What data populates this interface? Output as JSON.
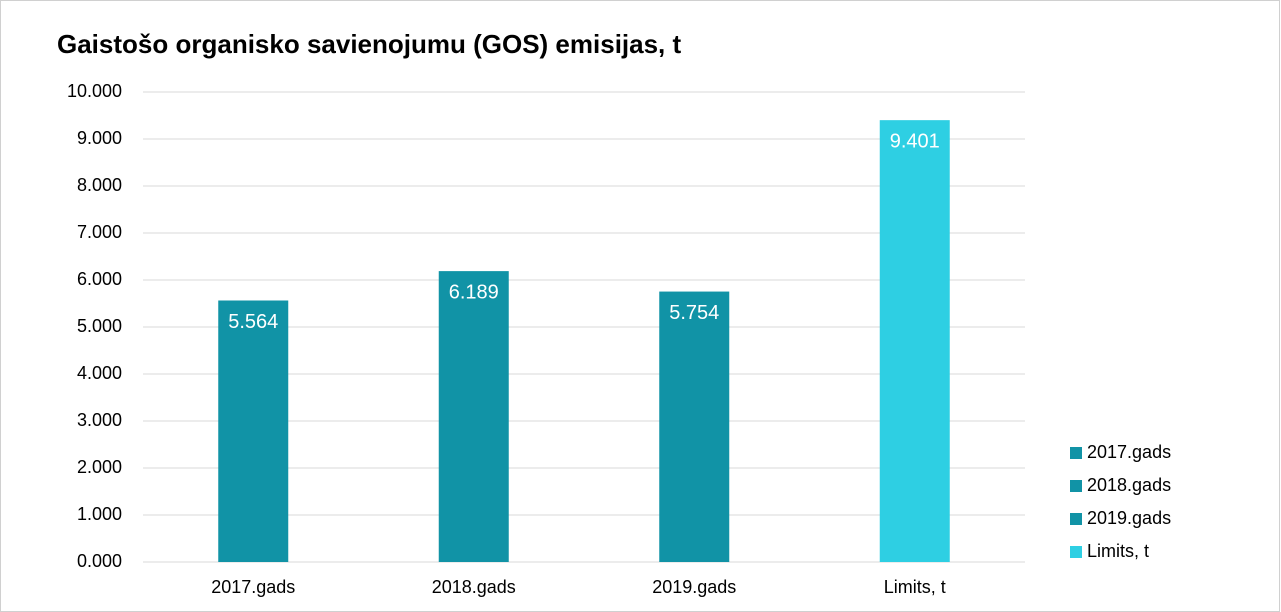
{
  "chart_data": {
    "type": "bar",
    "title": "Gaistošo organisko savienojumu (GOS) emisijas, t",
    "categories": [
      "2017.gads",
      "2018.gads",
      "2019.gads",
      "Limits, t"
    ],
    "values": [
      5.564,
      6.189,
      5.754,
      9.401
    ],
    "colors": [
      "#1193a6",
      "#1193a6",
      "#1193a6",
      "#2ecfe3"
    ],
    "ylim": [
      0,
      10
    ],
    "yticks": [
      {
        "value": 0,
        "label": "0.000"
      },
      {
        "value": 1,
        "label": "1.000"
      },
      {
        "value": 2,
        "label": "2.000"
      },
      {
        "value": 3,
        "label": "3.000"
      },
      {
        "value": 4,
        "label": "4.000"
      },
      {
        "value": 5,
        "label": "5.000"
      },
      {
        "value": 6,
        "label": "6.000"
      },
      {
        "value": 7,
        "label": "7.000"
      },
      {
        "value": 8,
        "label": "8.000"
      },
      {
        "value": 9,
        "label": "9.000"
      },
      {
        "value": 10,
        "label": "10.000"
      }
    ],
    "grid": true,
    "legend": "right"
  }
}
